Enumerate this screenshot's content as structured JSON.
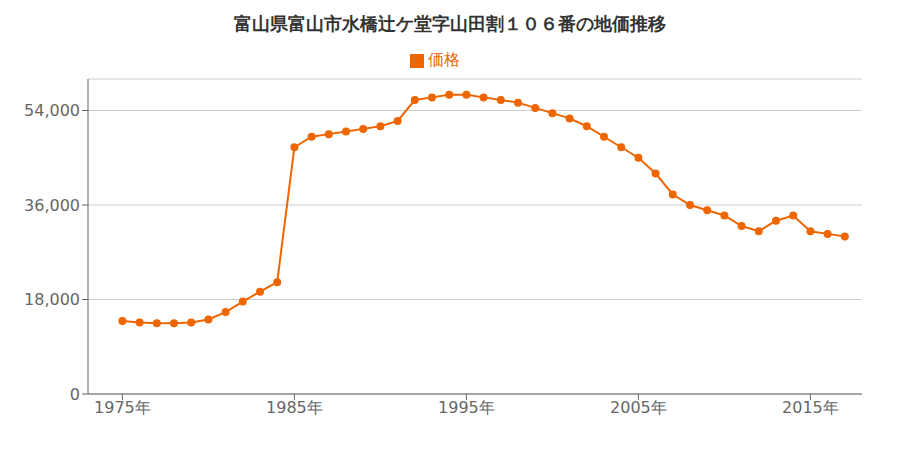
{
  "chart_data": {
    "type": "line",
    "title": "富山県富山市水橋辻ケ堂字山田割１０６番の地価推移",
    "x": [
      1975,
      1976,
      1977,
      1978,
      1979,
      1980,
      1981,
      1982,
      1983,
      1984,
      1985,
      1986,
      1987,
      1988,
      1989,
      1990,
      1991,
      1992,
      1993,
      1994,
      1995,
      1996,
      1997,
      1998,
      1999,
      2000,
      2001,
      2002,
      2003,
      2004,
      2005,
      2006,
      2007,
      2008,
      2009,
      2010,
      2011,
      2012,
      2013,
      2014,
      2015,
      2016,
      2017
    ],
    "series": [
      {
        "name": "価格",
        "color": "#EE6600",
        "marker": "circle",
        "values": [
          13900,
          13600,
          13500,
          13500,
          13600,
          14200,
          15600,
          17600,
          19500,
          21300,
          47000,
          49000,
          49500,
          50000,
          50500,
          51000,
          52000,
          56000,
          56500,
          57000,
          57000,
          56500,
          56000,
          55500,
          54500,
          53500,
          52500,
          51000,
          49000,
          47000,
          45000,
          42000,
          38000,
          36000,
          35000,
          34000,
          32000,
          31000,
          33000,
          34000,
          31000,
          30500,
          30000
        ]
      }
    ],
    "xlim": [
      1973,
      2018
    ],
    "xticks": [
      {
        "value": 1975,
        "label": "1975年"
      },
      {
        "value": 1985,
        "label": "1985年"
      },
      {
        "value": 1995,
        "label": "1995年"
      },
      {
        "value": 2005,
        "label": "2005年"
      },
      {
        "value": 2015,
        "label": "2015年"
      }
    ],
    "ylim": [
      0,
      60000
    ],
    "yticks": [
      0,
      {
        "value": 18000,
        "label": "18,000"
      },
      {
        "value": 36000,
        "label": "36,000"
      },
      {
        "value": 54000,
        "label": "54,000"
      }
    ],
    "grid": "y",
    "legend": "top"
  }
}
